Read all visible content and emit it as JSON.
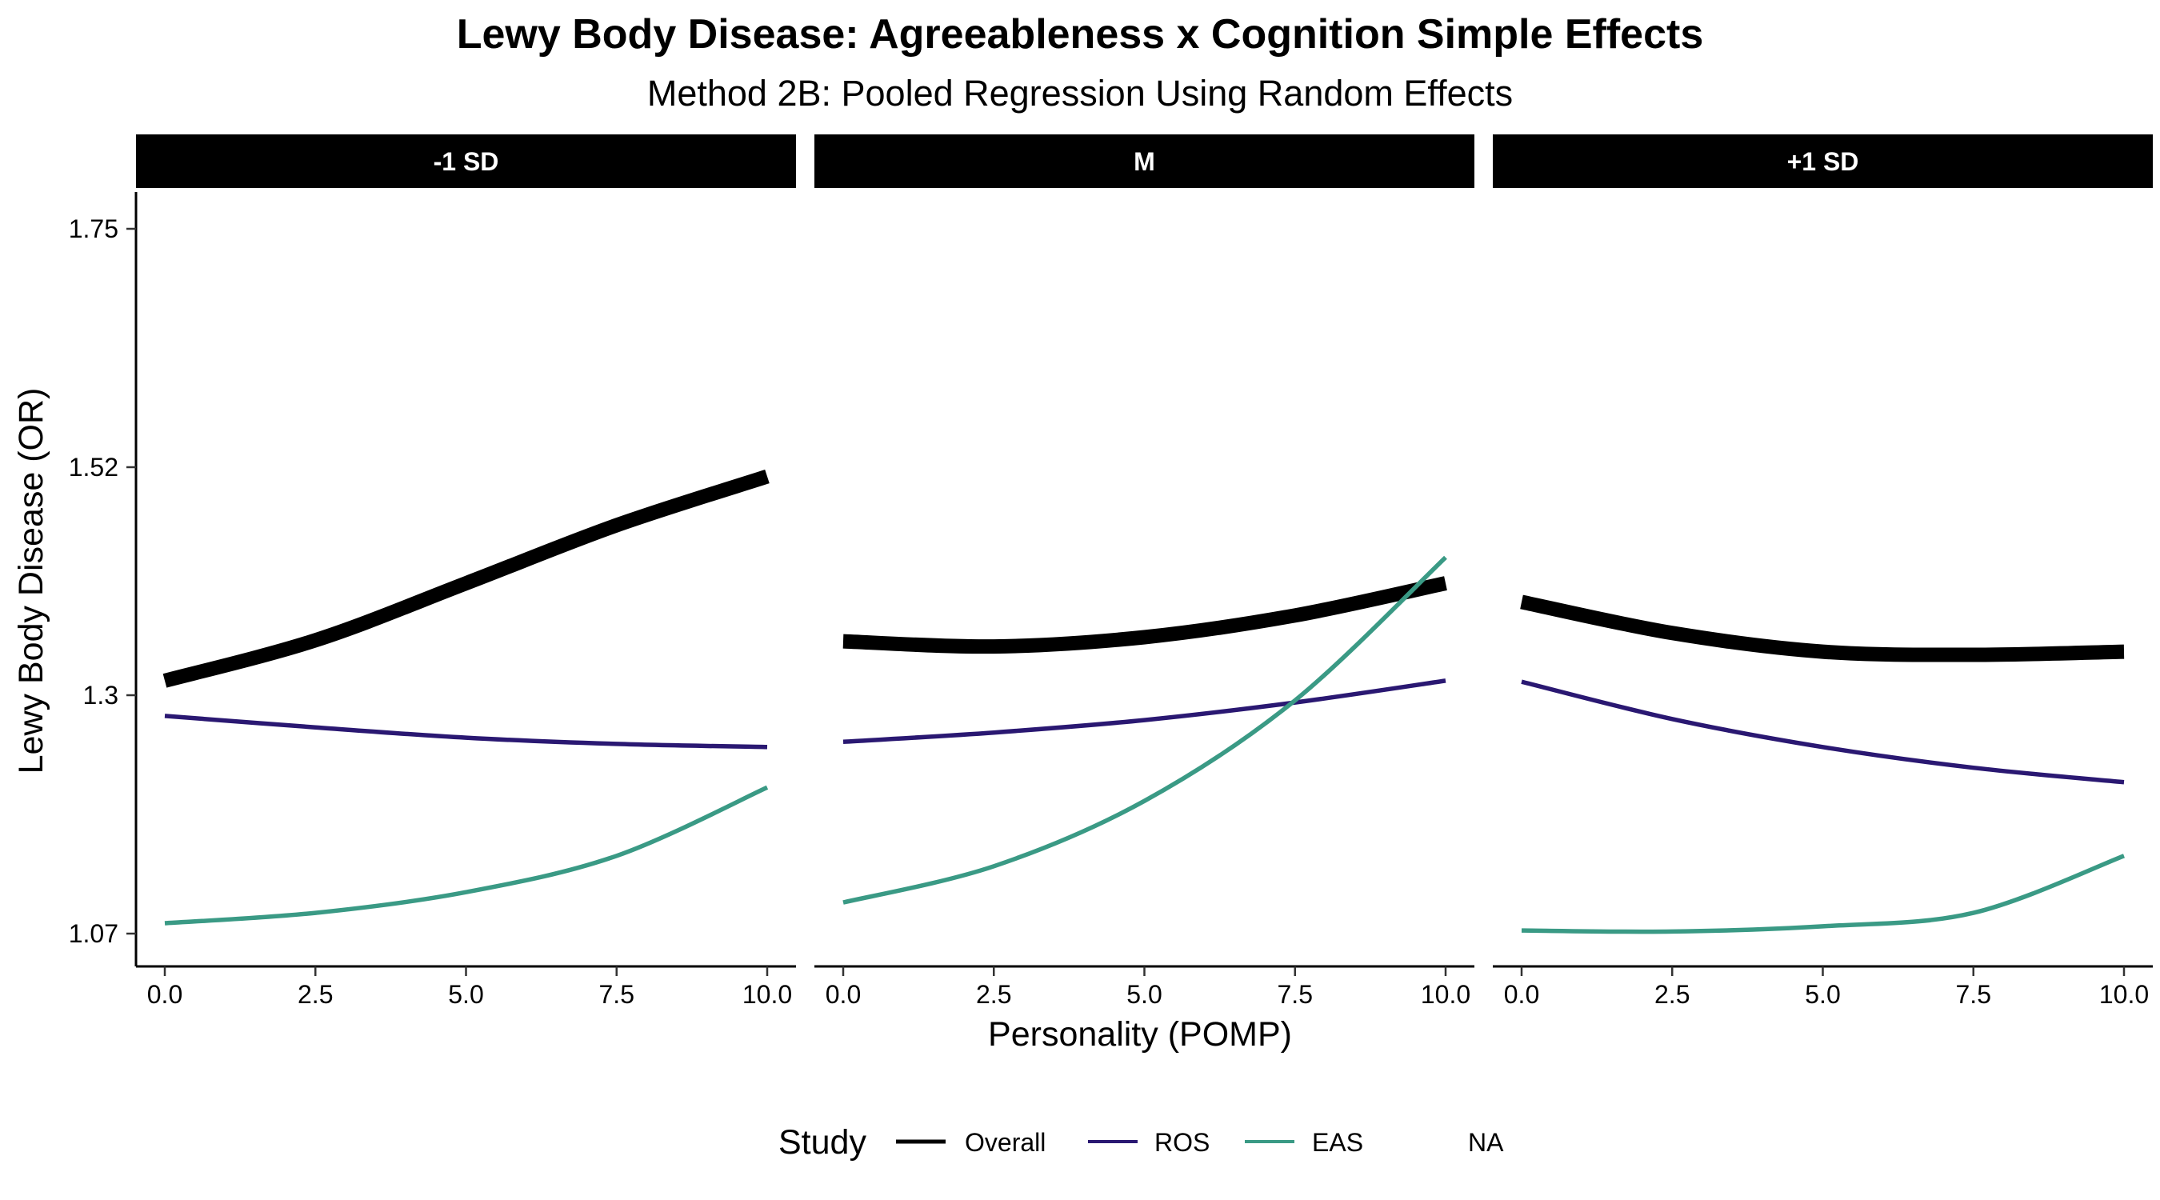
{
  "chart_data": {
    "type": "line",
    "title": "Lewy Body Disease: Agreeableness x Cognition Simple Effects",
    "subtitle": "Method 2B: Pooled Regression Using Random Effects",
    "xlabel": "Personality (POMP)",
    "ylabel": "Lewy Body Disease (OR)",
    "xlim": [
      0,
      10
    ],
    "ylim": [
      1.07,
      1.75
    ],
    "x_ticks": [
      "0.0",
      "2.5",
      "5.0",
      "7.5",
      "10.0"
    ],
    "y_ticks": [
      "1.07",
      "1.3",
      "1.52",
      "1.75"
    ],
    "grid": false,
    "legend": {
      "title": "Study",
      "position": "bottom",
      "entries": [
        "Overall",
        "ROS",
        "EAS",
        "NA"
      ]
    },
    "colors": {
      "Overall": "#000000",
      "ROS": "#2a1872",
      "EAS": "#3a9a85"
    },
    "panels": [
      {
        "label": "-1 SD",
        "x": [
          0,
          2.5,
          5,
          7.5,
          10
        ],
        "series": [
          {
            "name": "Overall",
            "values": [
              1.314,
              1.353,
              1.408,
              1.464,
              1.511
            ]
          },
          {
            "name": "ROS",
            "values": [
              1.28,
              1.269,
              1.259,
              1.253,
              1.25
            ]
          },
          {
            "name": "EAS",
            "values": [
              1.08,
              1.09,
              1.11,
              1.145,
              1.211
            ]
          }
        ]
      },
      {
        "label": "M",
        "x": [
          0,
          2.5,
          5,
          7.5,
          10
        ],
        "series": [
          {
            "name": "Overall",
            "values": [
              1.352,
              1.347,
              1.356,
              1.377,
              1.408
            ]
          },
          {
            "name": "ROS",
            "values": [
              1.255,
              1.264,
              1.276,
              1.293,
              1.314
            ]
          },
          {
            "name": "EAS",
            "values": [
              1.1,
              1.135,
              1.198,
              1.295,
              1.433
            ]
          }
        ]
      },
      {
        "label": "+1 SD",
        "x": [
          0,
          2.5,
          5,
          7.5,
          10
        ],
        "series": [
          {
            "name": "Overall",
            "values": [
              1.39,
              1.36,
              1.342,
              1.339,
              1.342
            ]
          },
          {
            "name": "ROS",
            "values": [
              1.313,
              1.277,
              1.25,
              1.23,
              1.216
            ]
          },
          {
            "name": "EAS",
            "values": [
              1.073,
              1.072,
              1.077,
              1.09,
              1.145
            ]
          }
        ]
      }
    ]
  }
}
